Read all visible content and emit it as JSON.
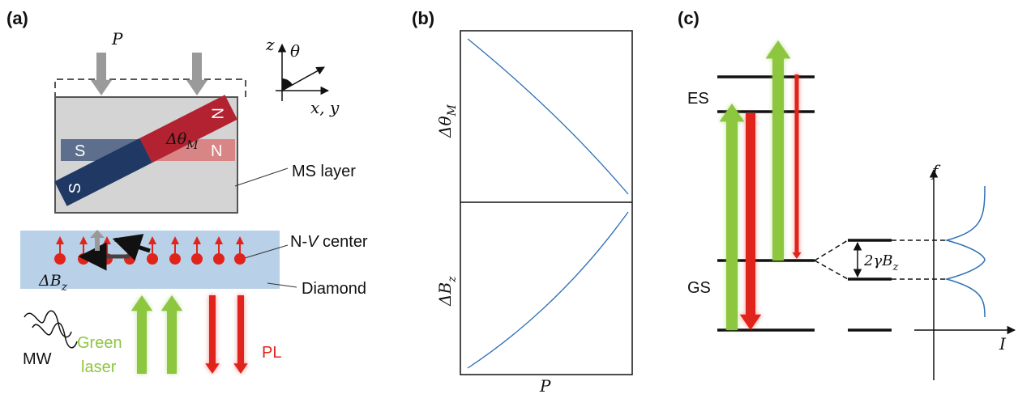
{
  "panel_a": {
    "label": "(a)",
    "pressure": "P",
    "axis_z": "z",
    "axis_theta": "θ",
    "axis_xy": "x, y",
    "magnet_s1": "S",
    "magnet_n1": "N",
    "magnet_s2": "S",
    "magnet_n2": "N",
    "angle_change": {
      "main": "Δθ",
      "sub": "M"
    },
    "ms_layer": "MS layer",
    "nv_center": {
      "pre": "N-",
      "italic": "V",
      "post": " center"
    },
    "field_change": {
      "main": "ΔB",
      "sub": "z"
    },
    "diamond": "Diamond",
    "mw": "MW",
    "green_laser": [
      "Green",
      "laser"
    ],
    "pl": "PL"
  },
  "panel_b": {
    "label": "(b)",
    "y_top": {
      "main": "Δθ",
      "sub": "M"
    },
    "y_bottom": {
      "main": "ΔB",
      "sub": "z"
    },
    "x_label": "P"
  },
  "panel_c": {
    "label": "(c)",
    "es": "ES",
    "gs": "GS",
    "splitting": {
      "main": "2γB",
      "sub": "z"
    },
    "axis_f": "f",
    "axis_i": "I"
  }
}
